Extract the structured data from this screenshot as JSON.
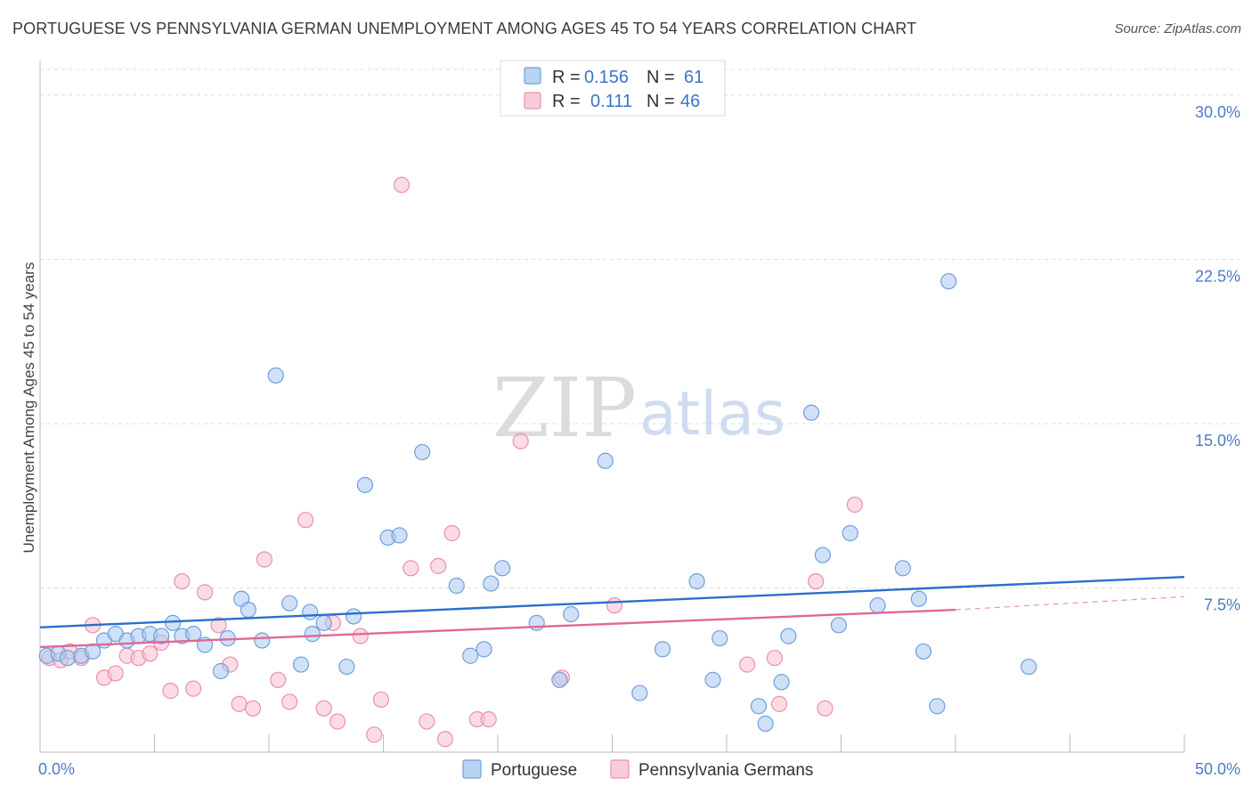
{
  "header": {
    "title": "PORTUGUESE VS PENNSYLVANIA GERMAN UNEMPLOYMENT AMONG AGES 45 TO 54 YEARS CORRELATION CHART",
    "source": "Source: ZipAtlas.com"
  },
  "watermark": {
    "zip": "ZIP",
    "atlas": "atlas"
  },
  "legend": {
    "rows": [
      {
        "r_label": "R =",
        "r_value": "0.156",
        "n_label": "N =",
        "n_value": "61",
        "color": "#a9c8f0"
      },
      {
        "r_label": "R =",
        "r_value": "0.111",
        "n_label": "N =",
        "n_value": "46",
        "color": "#f5b8ca"
      }
    ]
  },
  "bottom_legend": {
    "series1": "Portuguese",
    "series2": "Pennsylvania Germans"
  },
  "colors": {
    "blue_fill": "#a9c8f0",
    "blue_stroke": "#6f9fdc",
    "blue_line": "#2a6fcc",
    "pink_fill": "#f7bfd0",
    "pink_stroke": "#ea8fae",
    "pink_line": "#e06894",
    "tick_label": "#4a7bc8",
    "grid": "#dddddd"
  },
  "chart_data": {
    "type": "scatter",
    "title": "PORTUGUESE VS PENNSYLVANIA GERMAN UNEMPLOYMENT AMONG AGES 45 TO 54 YEARS CORRELATION CHART",
    "xlabel": "",
    "ylabel": "Unemployment Among Ages 45 to 54 years",
    "xlim": [
      0,
      50
    ],
    "ylim": [
      0,
      31.5
    ],
    "x_tick_labels": [
      {
        "value": 0,
        "label": "0.0%"
      },
      {
        "value": 50,
        "label": "50.0%"
      }
    ],
    "y_ticks": [
      {
        "value": 7.5,
        "label": "7.5%"
      },
      {
        "value": 15,
        "label": "15.0%"
      },
      {
        "value": 22.5,
        "label": "22.5%"
      },
      {
        "value": 30,
        "label": "30.0%"
      }
    ],
    "grid": true,
    "legend_position": "top-center",
    "series": [
      {
        "name": "Portuguese",
        "r": 0.156,
        "n": 61,
        "trend": {
          "x0": 0,
          "y0": 5.7,
          "x1": 50,
          "y1": 8.0
        },
        "points": [
          [
            0.3,
            4.4
          ],
          [
            0.8,
            4.5
          ],
          [
            1.2,
            4.3
          ],
          [
            1.8,
            4.4
          ],
          [
            2.3,
            4.6
          ],
          [
            2.8,
            5.1
          ],
          [
            3.3,
            5.4
          ],
          [
            3.8,
            5.1
          ],
          [
            4.3,
            5.3
          ],
          [
            4.8,
            5.4
          ],
          [
            5.3,
            5.3
          ],
          [
            5.8,
            5.9
          ],
          [
            6.2,
            5.3
          ],
          [
            6.7,
            5.4
          ],
          [
            7.2,
            4.9
          ],
          [
            7.9,
            3.7
          ],
          [
            8.2,
            5.2
          ],
          [
            8.8,
            7.0
          ],
          [
            9.1,
            6.5
          ],
          [
            9.7,
            5.1
          ],
          [
            10.3,
            17.2
          ],
          [
            10.9,
            6.8
          ],
          [
            11.4,
            4.0
          ],
          [
            11.8,
            6.4
          ],
          [
            11.9,
            5.4
          ],
          [
            12.4,
            5.9
          ],
          [
            13.4,
            3.9
          ],
          [
            13.7,
            6.2
          ],
          [
            14.2,
            12.2
          ],
          [
            15.2,
            9.8
          ],
          [
            15.7,
            9.9
          ],
          [
            16.7,
            13.7
          ],
          [
            18.2,
            7.6
          ],
          [
            18.8,
            4.4
          ],
          [
            19.4,
            4.7
          ],
          [
            19.7,
            7.7
          ],
          [
            20.2,
            8.4
          ],
          [
            21.7,
            5.9
          ],
          [
            22.7,
            3.3
          ],
          [
            23.2,
            6.3
          ],
          [
            24.7,
            13.3
          ],
          [
            26.2,
            2.7
          ],
          [
            27.2,
            4.7
          ],
          [
            28.7,
            7.8
          ],
          [
            29.4,
            3.3
          ],
          [
            29.7,
            5.2
          ],
          [
            31.4,
            2.1
          ],
          [
            31.7,
            1.3
          ],
          [
            32.4,
            3.2
          ],
          [
            32.7,
            5.3
          ],
          [
            33.7,
            15.5
          ],
          [
            34.2,
            9.0
          ],
          [
            34.9,
            5.8
          ],
          [
            35.4,
            10.0
          ],
          [
            36.6,
            6.7
          ],
          [
            37.7,
            8.4
          ],
          [
            38.4,
            7.0
          ],
          [
            38.6,
            4.6
          ],
          [
            39.2,
            2.1
          ],
          [
            39.7,
            21.5
          ],
          [
            43.2,
            3.9
          ]
        ]
      },
      {
        "name": "Pennsylvania Germans",
        "r": 0.111,
        "n": 46,
        "trend": {
          "x0": 0,
          "y0": 4.8,
          "x1": 40,
          "y1": 6.5,
          "x_dash_end": 50,
          "y_dash_end": 7.1
        },
        "points": [
          [
            0.4,
            4.3
          ],
          [
            0.9,
            4.2
          ],
          [
            1.3,
            4.6
          ],
          [
            1.8,
            4.3
          ],
          [
            2.3,
            5.8
          ],
          [
            2.8,
            3.4
          ],
          [
            3.3,
            3.6
          ],
          [
            3.8,
            4.4
          ],
          [
            4.3,
            4.3
          ],
          [
            4.8,
            4.5
          ],
          [
            5.3,
            5.0
          ],
          [
            5.7,
            2.8
          ],
          [
            6.2,
            7.8
          ],
          [
            6.7,
            2.9
          ],
          [
            7.2,
            7.3
          ],
          [
            7.8,
            5.8
          ],
          [
            8.3,
            4.0
          ],
          [
            8.7,
            2.2
          ],
          [
            9.3,
            2.0
          ],
          [
            9.8,
            8.8
          ],
          [
            10.4,
            3.3
          ],
          [
            10.9,
            2.3
          ],
          [
            11.6,
            10.6
          ],
          [
            12.4,
            2.0
          ],
          [
            12.8,
            5.9
          ],
          [
            13.0,
            1.4
          ],
          [
            14.0,
            5.3
          ],
          [
            14.6,
            0.8
          ],
          [
            14.9,
            2.4
          ],
          [
            15.8,
            25.9
          ],
          [
            16.2,
            8.4
          ],
          [
            16.9,
            1.4
          ],
          [
            17.4,
            8.5
          ],
          [
            17.7,
            0.6
          ],
          [
            18.0,
            10.0
          ],
          [
            19.1,
            1.5
          ],
          [
            19.6,
            1.5
          ],
          [
            21.0,
            14.2
          ],
          [
            22.8,
            3.4
          ],
          [
            25.1,
            6.7
          ],
          [
            30.9,
            4.0
          ],
          [
            32.1,
            4.3
          ],
          [
            32.3,
            2.2
          ],
          [
            33.9,
            7.8
          ],
          [
            34.3,
            2.0
          ],
          [
            35.6,
            11.3
          ]
        ]
      }
    ]
  }
}
